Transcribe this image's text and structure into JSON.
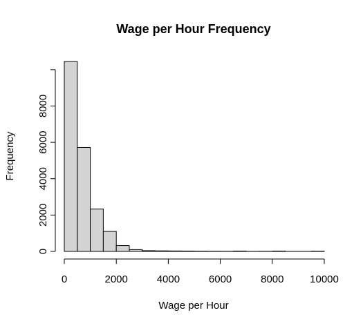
{
  "chart_data": {
    "type": "bar",
    "title": "Wage per Hour Frequency",
    "xlabel": "Wage per Hour",
    "ylabel": "Frequency",
    "bin_edges": [
      0,
      500,
      1000,
      1500,
      2000,
      2500,
      3000,
      3500,
      4000,
      4500,
      5000,
      5500,
      6000,
      6500,
      7000,
      7500,
      8000,
      8500,
      9000,
      9500,
      10000
    ],
    "values": [
      10450,
      5720,
      2330,
      1100,
      320,
      100,
      40,
      30,
      25,
      20,
      15,
      10,
      8,
      20,
      5,
      8,
      20,
      3,
      3,
      15
    ],
    "xlim": [
      0,
      10000
    ],
    "ylim": [
      0,
      10450
    ],
    "x_ticks": [
      0,
      2000,
      4000,
      6000,
      8000,
      10000
    ],
    "x_tick_labels": [
      "0",
      "2000",
      "4000",
      "6000",
      "8000",
      "10000"
    ],
    "y_ticks": [
      0,
      2000,
      4000,
      6000,
      8000,
      10000
    ],
    "y_tick_labels": [
      "0",
      "2000",
      "4000",
      "6000",
      "8000",
      ""
    ],
    "bar_fill": "#d3d3d3",
    "bar_stroke": "#000000",
    "grid": false,
    "legend": "none"
  }
}
